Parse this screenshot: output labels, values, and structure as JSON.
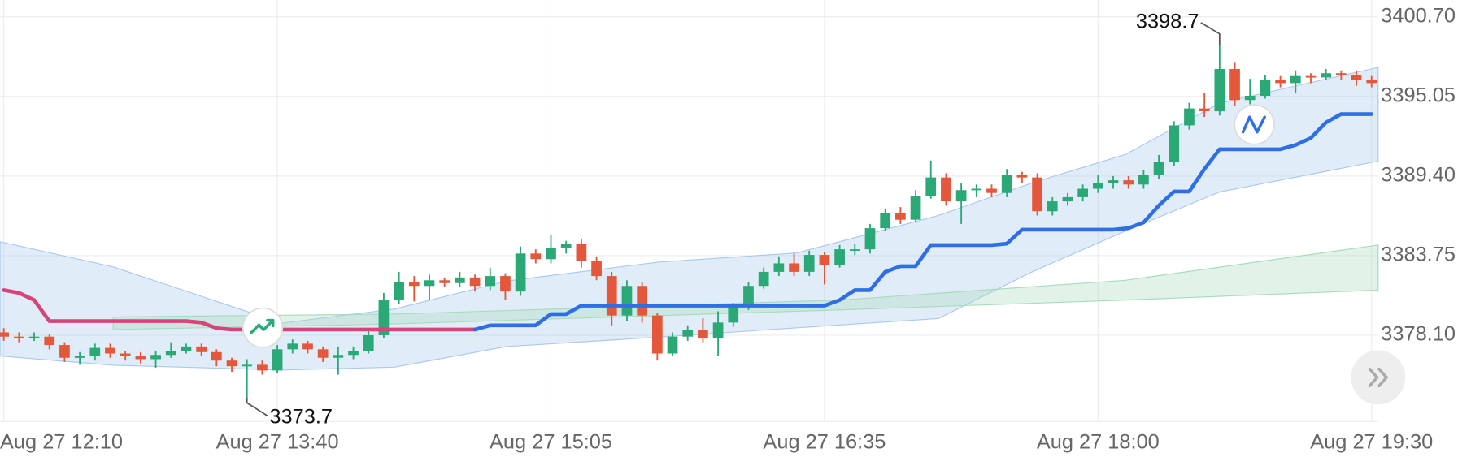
{
  "chart_data": {
    "type": "candlestick",
    "categories": [
      "Aug 27 12:10",
      null,
      null,
      null,
      null,
      null,
      null,
      null,
      null,
      null,
      null,
      null,
      null,
      null,
      null,
      null,
      null,
      null,
      "Aug 27 13:40",
      null,
      null,
      null,
      null,
      null,
      null,
      null,
      null,
      null,
      null,
      null,
      null,
      null,
      null,
      null,
      null,
      null,
      "Aug 27 15:05",
      null,
      null,
      null,
      null,
      null,
      null,
      null,
      null,
      null,
      null,
      null,
      null,
      null,
      null,
      null,
      null,
      null,
      "Aug 27 16:35",
      null,
      null,
      null,
      null,
      null,
      null,
      null,
      null,
      null,
      null,
      null,
      null,
      null,
      null,
      null,
      null,
      null,
      "Aug 27 18:00",
      null,
      null,
      null,
      null,
      null,
      null,
      null,
      null,
      null,
      null,
      null,
      null,
      null,
      null,
      null,
      null,
      null,
      "Aug 27 19:30"
    ],
    "xlim": [
      -0.25,
      90.43
    ],
    "ohlc": [
      [
        3378.3,
        3378.6,
        3377.7,
        3378.0
      ],
      [
        3378.0,
        3378.3,
        3377.6,
        3377.9
      ],
      [
        3377.9,
        3378.3,
        3377.7,
        3378.0
      ],
      [
        3378.0,
        3378.2,
        3377.1,
        3377.4
      ],
      [
        3377.4,
        3377.6,
        3376.2,
        3376.5
      ],
      [
        3376.5,
        3376.9,
        3376.0,
        3376.6
      ],
      [
        3376.6,
        3377.5,
        3376.3,
        3377.2
      ],
      [
        3377.2,
        3377.5,
        3376.5,
        3376.8
      ],
      [
        3376.8,
        3377.0,
        3376.3,
        3376.6
      ],
      [
        3376.6,
        3376.9,
        3376.1,
        3376.4
      ],
      [
        3376.4,
        3377.0,
        3375.8,
        3376.7
      ],
      [
        3376.7,
        3377.6,
        3376.5,
        3377.0
      ],
      [
        3377.0,
        3377.5,
        3376.8,
        3377.3
      ],
      [
        3377.3,
        3377.5,
        3376.6,
        3376.9
      ],
      [
        3376.9,
        3377.1,
        3375.9,
        3376.3
      ],
      [
        3376.3,
        3376.5,
        3375.5,
        3375.9
      ],
      [
        3375.9,
        3376.4,
        3373.7,
        3376.0
      ],
      [
        3376.0,
        3376.3,
        3375.3,
        3375.6
      ],
      [
        3375.6,
        3377.4,
        3375.4,
        3377.1
      ],
      [
        3377.1,
        3377.8,
        3376.8,
        3377.5
      ],
      [
        3377.5,
        3377.7,
        3376.8,
        3377.1
      ],
      [
        3377.1,
        3377.3,
        3376.2,
        3376.5
      ],
      [
        3376.5,
        3377.3,
        3375.3,
        3376.7
      ],
      [
        3376.7,
        3377.3,
        3376.4,
        3377.0
      ],
      [
        3377.0,
        3378.4,
        3376.8,
        3378.1
      ],
      [
        3378.1,
        3381.1,
        3377.9,
        3380.6
      ],
      [
        3380.6,
        3382.6,
        3380.3,
        3381.9
      ],
      [
        3381.9,
        3382.3,
        3380.5,
        3381.6
      ],
      [
        3381.6,
        3382.4,
        3380.6,
        3382.0
      ],
      [
        3382.0,
        3382.2,
        3381.5,
        3381.8
      ],
      [
        3381.8,
        3382.6,
        3381.5,
        3382.2
      ],
      [
        3382.2,
        3382.4,
        3381.2,
        3381.6
      ],
      [
        3381.6,
        3382.9,
        3381.3,
        3382.3
      ],
      [
        3382.3,
        3382.5,
        3380.6,
        3381.2
      ],
      [
        3381.2,
        3384.4,
        3380.9,
        3383.9
      ],
      [
        3383.9,
        3384.2,
        3383.2,
        3383.5
      ],
      [
        3383.5,
        3385.2,
        3383.2,
        3384.3
      ],
      [
        3384.3,
        3384.8,
        3383.9,
        3384.6
      ],
      [
        3384.6,
        3384.9,
        3382.9,
        3383.4
      ],
      [
        3383.4,
        3383.7,
        3382.0,
        3382.3
      ],
      [
        3382.3,
        3382.6,
        3378.8,
        3379.5
      ],
      [
        3379.5,
        3382.0,
        3379.1,
        3381.6
      ],
      [
        3381.6,
        3381.9,
        3379.0,
        3379.5
      ],
      [
        3379.5,
        3379.7,
        3376.3,
        3376.8
      ],
      [
        3376.8,
        3378.3,
        3376.6,
        3378.0
      ],
      [
        3378.0,
        3378.8,
        3377.7,
        3378.5
      ],
      [
        3378.5,
        3379.3,
        3377.6,
        3377.9
      ],
      [
        3377.9,
        3379.8,
        3376.6,
        3379.0
      ],
      [
        3379.0,
        3380.4,
        3378.7,
        3380.1
      ],
      [
        3380.1,
        3381.9,
        3379.9,
        3381.6
      ],
      [
        3381.6,
        3382.9,
        3381.4,
        3382.6
      ],
      [
        3382.6,
        3383.7,
        3382.3,
        3383.2
      ],
      [
        3383.2,
        3383.9,
        3382.3,
        3382.6
      ],
      [
        3382.6,
        3384.1,
        3382.3,
        3383.8
      ],
      [
        3383.8,
        3384.0,
        3381.7,
        3383.1
      ],
      [
        3383.1,
        3384.5,
        3382.9,
        3384.2
      ],
      [
        3384.2,
        3384.6,
        3383.8,
        3384.2
      ],
      [
        3384.2,
        3386.0,
        3383.9,
        3385.7
      ],
      [
        3385.7,
        3387.1,
        3385.5,
        3386.8
      ],
      [
        3386.8,
        3387.2,
        3386.0,
        3386.3
      ],
      [
        3386.3,
        3388.4,
        3386.1,
        3388.0
      ],
      [
        3388.0,
        3390.5,
        3387.8,
        3389.3
      ],
      [
        3389.3,
        3389.6,
        3387.3,
        3387.6
      ],
      [
        3387.6,
        3388.9,
        3386.0,
        3388.4
      ],
      [
        3388.4,
        3388.8,
        3387.9,
        3388.5
      ],
      [
        3388.5,
        3388.8,
        3387.9,
        3388.2
      ],
      [
        3388.2,
        3389.9,
        3387.9,
        3389.5
      ],
      [
        3389.5,
        3389.7,
        3388.9,
        3389.3
      ],
      [
        3389.3,
        3389.6,
        3386.6,
        3386.9
      ],
      [
        3386.9,
        3387.9,
        3386.6,
        3387.6
      ],
      [
        3387.6,
        3388.2,
        3387.3,
        3387.9
      ],
      [
        3387.9,
        3388.8,
        3387.6,
        3388.5
      ],
      [
        3388.5,
        3389.5,
        3388.2,
        3388.9
      ],
      [
        3388.9,
        3389.4,
        3388.5,
        3389.1
      ],
      [
        3389.1,
        3389.4,
        3388.5,
        3388.8
      ],
      [
        3388.8,
        3389.8,
        3388.5,
        3389.5
      ],
      [
        3389.5,
        3390.9,
        3389.2,
        3390.4
      ],
      [
        3390.4,
        3393.3,
        3390.1,
        3393.0
      ],
      [
        3393.0,
        3394.6,
        3392.7,
        3394.2
      ],
      [
        3394.2,
        3395.3,
        3393.6,
        3394.0
      ],
      [
        3394.0,
        3398.7,
        3393.7,
        3397.0
      ],
      [
        3397.0,
        3397.5,
        3394.4,
        3394.8
      ],
      [
        3394.8,
        3396.3,
        3394.5,
        3395.1
      ],
      [
        3395.1,
        3396.6,
        3394.9,
        3396.2
      ],
      [
        3396.2,
        3396.5,
        3395.7,
        3396.0
      ],
      [
        3396.0,
        3396.9,
        3395.3,
        3396.5
      ],
      [
        3396.5,
        3396.7,
        3396.0,
        3396.4
      ],
      [
        3396.4,
        3397.0,
        3396.2,
        3396.7
      ],
      [
        3396.7,
        3396.9,
        3396.2,
        3396.6
      ],
      [
        3396.6,
        3396.9,
        3395.8,
        3396.2
      ],
      [
        3396.2,
        3396.5,
        3395.7,
        3396.0
      ]
    ],
    "up_color": "#2aa876",
    "down_color": "#e4573a",
    "lines": [
      {
        "color": "#d6457a",
        "values": [
          3381.3,
          3381.1,
          3380.6,
          3379.1,
          3379.1,
          3379.1,
          3379.1,
          3379.1,
          3379.1,
          3379.1,
          3379.1,
          3379.1,
          3379.1,
          3379.0,
          3378.6,
          3378.5,
          3378.5,
          3378.5,
          3378.5,
          3378.5,
          3378.5,
          3378.5,
          3378.5,
          3378.5,
          3378.5,
          3378.5,
          3378.5,
          3378.5,
          3378.5,
          3378.5,
          3378.5,
          3378.5,
          null,
          null,
          null,
          null,
          null,
          null,
          null,
          null,
          null,
          null,
          null,
          null,
          null,
          null,
          null,
          null,
          null,
          null,
          null,
          null,
          null,
          null,
          null,
          null,
          null,
          null,
          null,
          null,
          null,
          null,
          null,
          null,
          null,
          null,
          null,
          null,
          null,
          null,
          null,
          null,
          null,
          null,
          null,
          null,
          null,
          null,
          null,
          null,
          null,
          null,
          null,
          null,
          null,
          null,
          null,
          null,
          null
        ]
      },
      {
        "color": "#2f6fe6",
        "values": [
          null,
          null,
          null,
          null,
          null,
          null,
          null,
          null,
          null,
          null,
          null,
          null,
          null,
          null,
          null,
          null,
          null,
          null,
          null,
          null,
          null,
          null,
          null,
          null,
          null,
          null,
          null,
          null,
          null,
          null,
          null,
          3378.5,
          3378.8,
          3378.8,
          3378.8,
          3378.8,
          3379.6,
          3379.6,
          3380.2,
          3380.2,
          3380.2,
          3380.2,
          3380.2,
          3380.2,
          3380.2,
          3380.2,
          3380.2,
          3380.2,
          3380.2,
          3380.2,
          3380.2,
          3380.2,
          3380.2,
          3380.2,
          3380.2,
          3380.6,
          3381.3,
          3381.3,
          3382.6,
          3383.0,
          3383.0,
          3384.5,
          3384.5,
          3384.5,
          3384.5,
          3384.5,
          3384.6,
          3385.6,
          3385.6,
          3385.6,
          3385.6,
          3385.6,
          3385.6,
          3385.6,
          3385.7,
          3386.1,
          3387.3,
          3388.3,
          3388.3,
          3389.9,
          3391.3,
          3391.3,
          3391.3,
          3391.3,
          3391.3,
          3391.6,
          3392.1,
          3393.2,
          3393.8,
          3393.8,
          3393.8
        ]
      }
    ],
    "bands": [
      {
        "color": "#a9c9ef",
        "x": [
          -0.25,
          7.2,
          18.3,
          25.7,
          33.1,
          43,
          52.2,
          61.5,
          67.7,
          73.8,
          80,
          90.43
        ],
        "upper": [
          3384.74,
          3382.95,
          3378.96,
          3379.96,
          3381.95,
          3383.28,
          3383.94,
          3386.6,
          3388.93,
          3390.93,
          3394.58,
          3397.11
        ],
        "lower": [
          3376.63,
          3375.97,
          3375.63,
          3375.83,
          3377.3,
          3377.96,
          3378.63,
          3379.29,
          3382.62,
          3385.5,
          3388.27,
          3390.46
        ]
      },
      {
        "color": "#a8dcbc",
        "x": [
          7.2,
          25.7,
          55,
          73.8,
          90.43
        ],
        "upper": [
          3379.4,
          3379.6,
          3380.6,
          3382.0,
          3384.5
        ],
        "lower": [
          3378.5,
          3378.9,
          3379.9,
          3380.6,
          3381.3
        ]
      }
    ],
    "ylim": [
      3371.98,
      3401.9
    ],
    "yticks": [
      {
        "value": 3400.7,
        "label": "3400.70"
      },
      3395.05,
      {
        "value": 3389.4,
        "label": "3389.40"
      },
      3383.75,
      {
        "value": 3378.1,
        "label": "3378.10"
      }
    ],
    "grid": true,
    "annotations": [
      {
        "text": "3398.7",
        "value": 3398.7,
        "field": "high"
      },
      {
        "text": "3373.7",
        "value": 3373.7,
        "field": "low"
      }
    ]
  }
}
